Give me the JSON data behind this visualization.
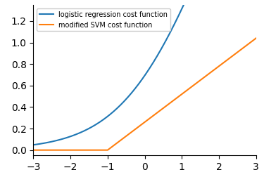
{
  "xlim": [
    -3,
    3
  ],
  "ylim": [
    -0.05,
    1.35
  ],
  "x_ticks": [
    -3,
    -2,
    -1,
    0,
    1,
    2,
    3
  ],
  "logistic_color": "#1f77b4",
  "svm_color": "#ff7f0e",
  "logistic_label": "logistic regression cost function",
  "svm_label": "modified SVM cost function",
  "background_color": "#ffffff",
  "linewidth": 1.5,
  "figsize": [
    3.75,
    2.52
  ],
  "dpi": 100,
  "svm_breakpoint": -1,
  "svm_slope": 0.26
}
